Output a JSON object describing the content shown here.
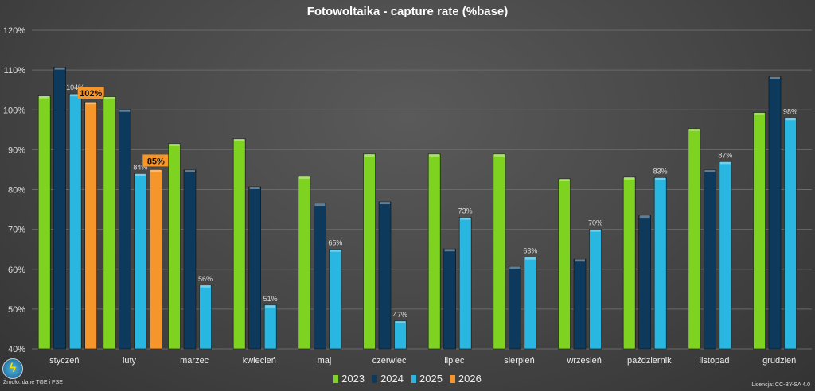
{
  "chart_data": {
    "type": "bar",
    "title": "Fotowoltaika - capture rate (%base)",
    "categories": [
      "styczeń",
      "luty",
      "marzec",
      "kwiecień",
      "maj",
      "czerwiec",
      "lipiec",
      "sierpień",
      "wrzesień",
      "październik",
      "listopad",
      "grudzień"
    ],
    "ylim": [
      40,
      120
    ],
    "yticks": [
      40,
      50,
      60,
      70,
      80,
      90,
      100,
      110,
      120
    ],
    "ytick_suffix": "%",
    "grid": true,
    "legend": "bottom",
    "series": [
      {
        "name": "2023",
        "color": "#7ed321",
        "values": [
          103.5,
          103.3,
          91.5,
          92.7,
          83.3,
          88.9,
          88.9,
          88.9,
          82.7,
          83.1,
          95.3,
          99.3
        ]
      },
      {
        "name": "2024",
        "color": "#0d3a5c",
        "values": [
          110.7,
          100.1,
          84.9,
          80.7,
          76.5,
          76.9,
          65.1,
          60.7,
          62.5,
          73.5,
          84.9,
          108.3
        ]
      },
      {
        "name": "2025",
        "color": "#29b6e0",
        "values": [
          104,
          84,
          56,
          51,
          65,
          47,
          73,
          63,
          70,
          83,
          87,
          98
        ],
        "data_labels": [
          "104%",
          "84%",
          "56%",
          "51%",
          "65%",
          "47%",
          "73%",
          "63%",
          "70%",
          "83%",
          "87%",
          "98%"
        ]
      },
      {
        "name": "2026",
        "color": "#f5952a",
        "values": [
          102,
          85,
          null,
          null,
          null,
          null,
          null,
          null,
          null,
          null,
          null,
          null
        ],
        "data_labels": [
          "102%",
          "85%"
        ]
      }
    ]
  },
  "footer": {
    "source": "Żródło: dane TGE i PSE",
    "license": "Licencja: CC-BY-SA 4.0",
    "logo_icon": "lightning-bolt-icon"
  }
}
